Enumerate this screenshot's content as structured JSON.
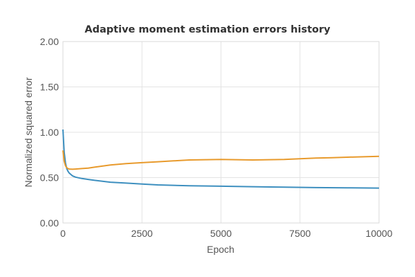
{
  "chart_data": {
    "type": "line",
    "title": "Adaptive moment estimation errors history",
    "xlabel": "Epoch",
    "ylabel": "Normalized squared error",
    "xlim": [
      0,
      10000
    ],
    "ylim": [
      0,
      2
    ],
    "x_ticks": [
      "0",
      "2500",
      "5000",
      "7500",
      "10000"
    ],
    "x_tick_values": [
      0,
      2500,
      5000,
      7500,
      10000
    ],
    "y_ticks": [
      "0.00",
      "0.50",
      "1.00",
      "1.50",
      "2.00"
    ],
    "y_tick_values": [
      0,
      0.5,
      1,
      1.5,
      2
    ],
    "grid": true,
    "legend": "none",
    "series": [
      {
        "color": "#3d8fbf",
        "x": [
          0,
          40,
          80,
          120,
          160,
          200,
          300,
          400,
          600,
          800,
          1000,
          1500,
          2000,
          2500,
          3000,
          4000,
          5000,
          6000,
          7000,
          8000,
          9000,
          10000
        ],
        "y": [
          1.03,
          0.78,
          0.66,
          0.6,
          0.57,
          0.55,
          0.52,
          0.505,
          0.49,
          0.48,
          0.47,
          0.45,
          0.44,
          0.43,
          0.42,
          0.41,
          0.405,
          0.4,
          0.395,
          0.39,
          0.388,
          0.385
        ]
      },
      {
        "color": "#e89a2c",
        "x": [
          0,
          40,
          80,
          120,
          160,
          200,
          300,
          400,
          600,
          800,
          1000,
          1500,
          2000,
          2500,
          3000,
          3500,
          4000,
          5000,
          6000,
          7000,
          8000,
          8500,
          9000,
          10000
        ],
        "y": [
          0.8,
          0.68,
          0.63,
          0.61,
          0.6,
          0.595,
          0.592,
          0.595,
          0.6,
          0.605,
          0.615,
          0.64,
          0.655,
          0.665,
          0.675,
          0.685,
          0.695,
          0.7,
          0.695,
          0.7,
          0.715,
          0.72,
          0.725,
          0.735
        ]
      }
    ]
  }
}
